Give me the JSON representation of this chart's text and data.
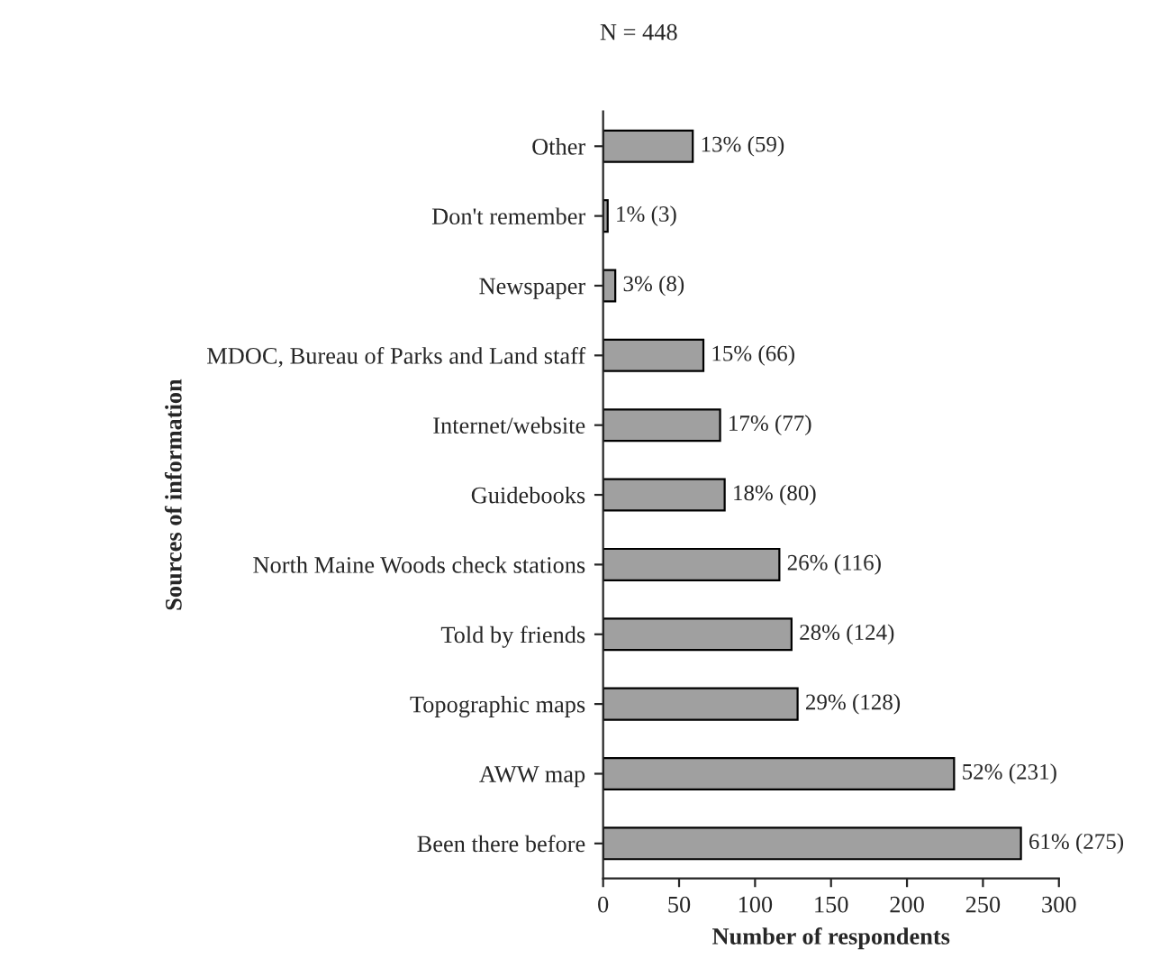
{
  "chart_data": {
    "type": "bar",
    "orientation": "horizontal",
    "title": "N = 448",
    "xlabel": "Number of respondents",
    "ylabel": "Sources of information",
    "categories": [
      "Other",
      "Don't remember",
      "Newspaper",
      "MDOC, Bureau of Parks and Land staff",
      "Internet/website",
      "Guidebooks",
      "North Maine Woods check stations",
      "Told by friends",
      "Topographic maps",
      "AWW map",
      "Been there before"
    ],
    "values": [
      59,
      3,
      8,
      66,
      77,
      80,
      116,
      124,
      128,
      231,
      275
    ],
    "value_labels": [
      "13% (59)",
      "1% (3)",
      "3% (8)",
      "15% (66)",
      "17% (77)",
      "18% (80)",
      "26% (116)",
      "28% (124)",
      "29% (128)",
      "52% (231)",
      "61% (275)"
    ],
    "color": "#a0a0a0",
    "xlim": [
      0,
      300
    ],
    "xticks": [
      0,
      50,
      100,
      150,
      200,
      250,
      300
    ],
    "grid": false,
    "legend": false
  }
}
